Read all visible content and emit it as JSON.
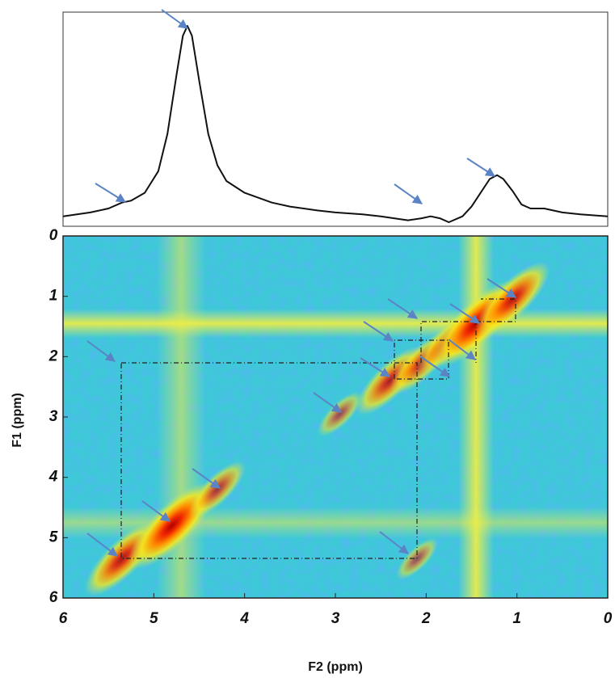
{
  "chart_data": [
    {
      "type": "line",
      "color": "#111111",
      "xlim": [
        6,
        0
      ],
      "ylim": [
        0,
        1
      ],
      "x": [
        6,
        5.7,
        5.5,
        5.35,
        5.25,
        5.1,
        4.95,
        4.85,
        4.75,
        4.68,
        4.63,
        4.58,
        4.5,
        4.4,
        4.3,
        4.2,
        4.0,
        3.7,
        3.5,
        3.2,
        3.0,
        2.7,
        2.5,
        2.2,
        2.05,
        1.95,
        1.85,
        1.75,
        1.6,
        1.5,
        1.4,
        1.3,
        1.22,
        1.15,
        1.05,
        0.95,
        0.85,
        0.7,
        0.5,
        0.3,
        0
      ],
      "values": [
        0.03,
        0.05,
        0.07,
        0.1,
        0.11,
        0.15,
        0.26,
        0.45,
        0.75,
        0.95,
        1.0,
        0.95,
        0.72,
        0.45,
        0.29,
        0.21,
        0.15,
        0.1,
        0.08,
        0.06,
        0.05,
        0.04,
        0.03,
        0.01,
        0.02,
        0.03,
        0.02,
        0.0,
        0.03,
        0.08,
        0.15,
        0.22,
        0.24,
        0.22,
        0.16,
        0.09,
        0.07,
        0.07,
        0.05,
        0.04,
        0.03
      ]
    },
    {
      "type": "heatmap",
      "xlabel": "F2 (ppm)",
      "ylabel": "F1 (ppm)",
      "xlim": [
        6,
        0
      ],
      "ylim": [
        0,
        6
      ],
      "xticks": [
        6,
        5,
        4,
        3,
        2,
        1,
        0
      ],
      "yticks": [
        0,
        1,
        2,
        3,
        4,
        5,
        6
      ],
      "peaks": {
        "f2": [
          5.35,
          4.8,
          4.3,
          2.95,
          2.4,
          2.05,
          1.75,
          1.45,
          1.05,
          2.1
        ],
        "f1": [
          5.35,
          4.8,
          4.2,
          2.95,
          2.4,
          2.1,
          1.75,
          1.45,
          1.05,
          5.35
        ],
        "values": [
          0.8,
          1.0,
          0.5,
          0.3,
          0.7,
          0.6,
          0.6,
          1.0,
          0.8,
          0.25
        ]
      },
      "ridges": {
        "f2": [
          1.45,
          4.7
        ],
        "f1": [
          1.45,
          4.75
        ]
      }
    }
  ]
}
